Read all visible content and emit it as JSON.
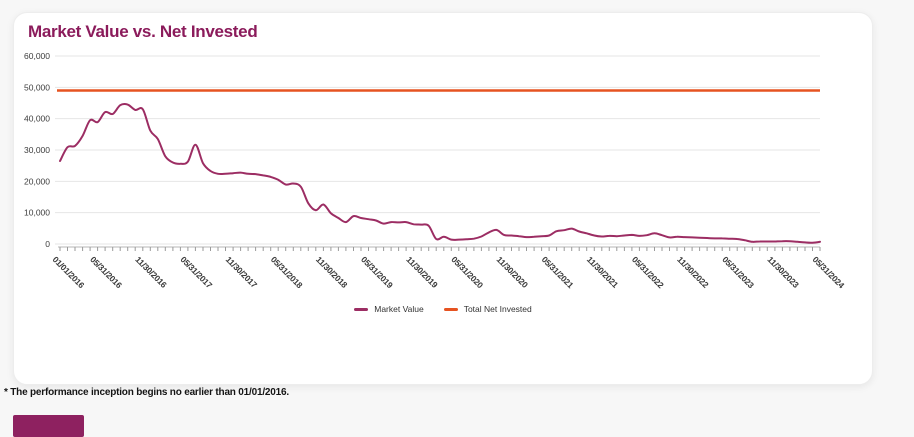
{
  "page": {
    "background_color": "#f7f7f7"
  },
  "colors": {
    "title_purple": "#8b1b5b",
    "market_value_line": "#9c2d63",
    "net_invested_line": "#e65321",
    "bottom_button_purple": "#8e2160",
    "gridline_gray": "#e6e6e6"
  },
  "chart_data": {
    "type": "line",
    "title": "Market Value vs. Net Invested",
    "xlabel": "",
    "ylabel": "",
    "ylim": [
      0,
      60000
    ],
    "y_tick_step": 10000,
    "y_tick_labels": [
      "0",
      "10,000",
      "20,000",
      "30,000",
      "40,000",
      "50,000",
      "60,000"
    ],
    "grid": "horizontal",
    "legend_position": "bottom-center",
    "x_tick_mode": "monthly",
    "num_points": 102,
    "x_labels": [
      "01/01/2016",
      "05/31/2016",
      "11/30/2016",
      "05/31/2017",
      "11/30/2017",
      "05/31/2018",
      "11/30/2018",
      "05/31/2019",
      "11/30/2019",
      "05/31/2020",
      "11/30/2020",
      "05/31/2021",
      "11/30/2021",
      "05/31/2022",
      "11/30/2022",
      "05/31/2023",
      "11/30/2023",
      "05/31/2024"
    ],
    "x_label_indices": [
      0,
      5,
      11,
      17,
      23,
      29,
      35,
      41,
      47,
      53,
      59,
      65,
      71,
      77,
      83,
      89,
      95,
      101
    ],
    "series": [
      {
        "name": "Market Value",
        "color": "#9c2d63",
        "values": [
          26500,
          30900,
          31300,
          34500,
          39500,
          38900,
          42100,
          41500,
          44300,
          44500,
          42800,
          43000,
          36200,
          33500,
          28000,
          26000,
          25600,
          26300,
          31700,
          25800,
          23300,
          22400,
          22400,
          22600,
          22800,
          22400,
          22300,
          21900,
          21400,
          20500,
          19000,
          19300,
          18300,
          13000,
          10800,
          12600,
          9800,
          8300,
          7000,
          8900,
          8300,
          7900,
          7500,
          6500,
          7000,
          6900,
          7000,
          6300,
          6200,
          5800,
          1600,
          2300,
          1400,
          1400,
          1500,
          1700,
          2400,
          3700,
          4500,
          2900,
          2700,
          2500,
          2200,
          2300,
          2500,
          2700,
          4100,
          4400,
          4900,
          4000,
          3400,
          2700,
          2400,
          2600,
          2500,
          2700,
          2900,
          2600,
          2800,
          3400,
          2800,
          2100,
          2300,
          2200,
          2100,
          2000,
          1900,
          1800,
          1800,
          1700,
          1600,
          1200,
          700,
          800,
          800,
          800,
          900,
          900,
          700,
          500,
          400,
          700
        ]
      },
      {
        "name": "Total Net Invested",
        "color": "#e65321",
        "constant_value": 49000
      }
    ]
  },
  "legend": {
    "items": [
      {
        "label": "Market Value",
        "color": "#9c2d63"
      },
      {
        "label": "Total Net Invested",
        "color": "#e65321"
      }
    ]
  },
  "footnote": {
    "text": "* The performance inception begins no earlier than 01/01/2016."
  }
}
